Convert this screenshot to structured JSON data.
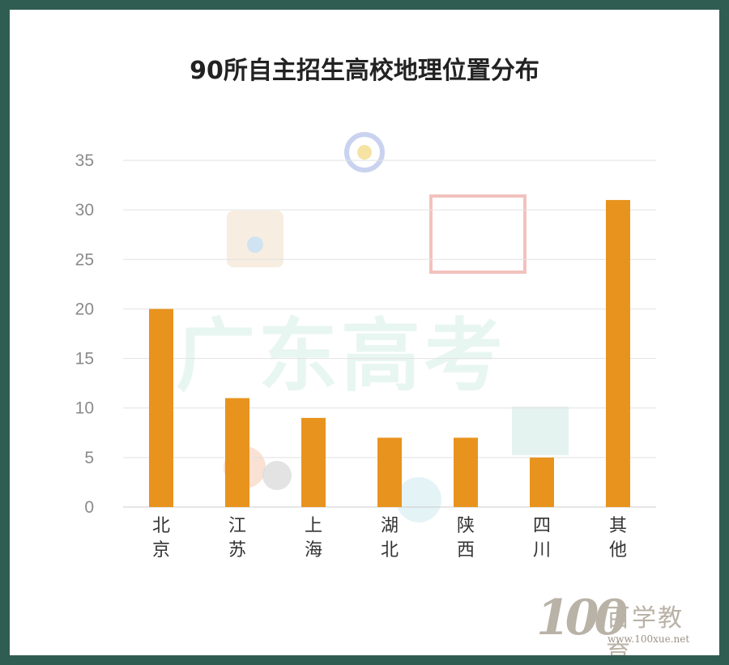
{
  "chart_data": {
    "type": "bar",
    "title": "90所自主招生高校地理位置分布",
    "categories": [
      "北京",
      "江苏",
      "上海",
      "湖北",
      "陕西",
      "四川",
      "其他"
    ],
    "values": [
      20,
      11,
      9,
      7,
      7,
      5,
      31
    ],
    "ylim": [
      0,
      35
    ],
    "yticks": [
      0,
      5,
      10,
      15,
      20,
      25,
      30,
      35
    ],
    "grid": true,
    "bar_color": "#e8931e",
    "grid_color": "#e2e2e2"
  },
  "watermark": {
    "text": "广东高考"
  },
  "brand": {
    "number": "100",
    "name": "百学教育",
    "url": "www.100xue.net"
  },
  "colors": {
    "border": "#2f5d52",
    "background": "#ffffff"
  }
}
